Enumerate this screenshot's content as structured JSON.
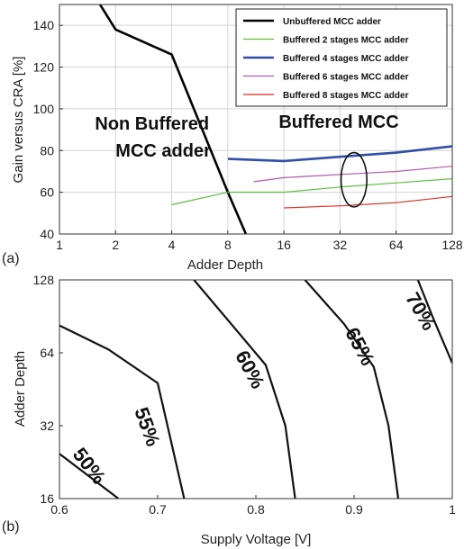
{
  "chart_data": [
    {
      "type": "line",
      "panel_label": "(a)",
      "xlabel": "Adder Depth",
      "ylabel": "Gain versus CRA [%]",
      "x_scale": "log2",
      "xlim": [
        1,
        128
      ],
      "ylim": [
        40,
        150
      ],
      "x_ticks": [
        1,
        2,
        4,
        8,
        16,
        32,
        64,
        128
      ],
      "y_ticks": [
        40,
        60,
        80,
        100,
        120,
        140
      ],
      "grid": true,
      "legend_position": "top-right",
      "series": [
        {
          "name": "Unbuffered MCC adder",
          "color": "#000000",
          "width": 2.6,
          "x": [
            1.65,
            2,
            4,
            8,
            10
          ],
          "y": [
            150,
            138,
            126,
            60,
            40
          ]
        },
        {
          "name": "Buffered 2 stages MCC adder",
          "color": "#5cc23e",
          "width": 1.2,
          "x": [
            4,
            8,
            16,
            32,
            64,
            128
          ],
          "y": [
            54,
            60,
            60,
            62.5,
            64.5,
            66.5
          ]
        },
        {
          "name": "Buffered 4 stages MCC adder",
          "color": "#2f4fa8",
          "width": 2.6,
          "x": [
            8,
            16,
            32,
            64,
            128
          ],
          "y": [
            76,
            75,
            77,
            79,
            82
          ]
        },
        {
          "name": "Buffered 6 stages MCC adder",
          "color": "#b85bb3",
          "width": 1.2,
          "x": [
            11,
            16,
            32,
            64,
            128
          ],
          "y": [
            65,
            67,
            68.5,
            70,
            72.5
          ]
        },
        {
          "name": "Buffered 8 stages MCC adder",
          "color": "#e0322a",
          "width": 1.2,
          "x": [
            16,
            32,
            64,
            128
          ],
          "y": [
            52.5,
            53.5,
            55,
            58
          ]
        }
      ],
      "annotations": [
        {
          "text": "Non Buffered",
          "x": 1.55,
          "y": 90
        },
        {
          "text": "MCC adder",
          "x": 2.0,
          "y": 77
        },
        {
          "text": "Buffered MCC",
          "x": 15.0,
          "y": 91
        }
      ],
      "ellipse": {
        "cx": 38,
        "cy": 66,
        "rx_octaves": 0.23,
        "ry": 13
      }
    },
    {
      "type": "contour",
      "panel_label": "(b)",
      "xlabel": "Supply Voltage [V]",
      "ylabel": "Adder Depth",
      "y_scale": "log2",
      "xlim": [
        0.6,
        1
      ],
      "ylim": [
        16,
        128
      ],
      "x_ticks": [
        0.6,
        0.7,
        0.8,
        0.9,
        1
      ],
      "y_ticks": [
        16,
        32,
        64,
        128
      ],
      "grid": false,
      "contours": [
        {
          "label": "50%",
          "x": [
            0.6,
            0.66
          ],
          "y": [
            24.5,
            16
          ],
          "label_x": 0.625,
          "label_y": 21,
          "angle": 52
        },
        {
          "label": "55%",
          "x": [
            0.6,
            0.65,
            0.7,
            0.71,
            0.727
          ],
          "y": [
            83,
            66,
            48,
            32,
            16
          ],
          "label_x": 0.683,
          "label_y": 31,
          "angle": 70
        },
        {
          "label": "60%",
          "x": [
            0.737,
            0.775,
            0.81,
            0.83,
            0.84
          ],
          "y": [
            128,
            84,
            57,
            32,
            16
          ],
          "label_x": 0.788,
          "label_y": 53,
          "angle": 62
        },
        {
          "label": "65%",
          "x": [
            0.85,
            0.89,
            0.92,
            0.935,
            0.945
          ],
          "y": [
            128,
            84,
            56,
            32,
            16
          ],
          "label_x": 0.9,
          "label_y": 66,
          "angle": 62
        },
        {
          "label": "70%",
          "x": [
            0.965,
            0.98,
            1.0
          ],
          "y": [
            128,
            90,
            58
          ],
          "label_x": 0.962,
          "label_y": 92,
          "angle": 60
        }
      ]
    }
  ]
}
